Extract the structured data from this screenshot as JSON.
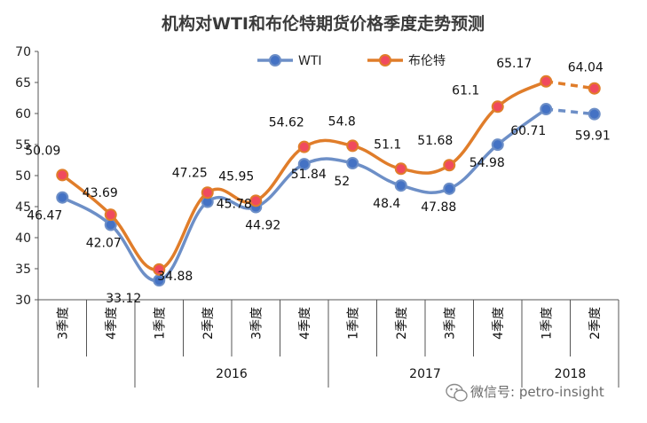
{
  "chart_data": {
    "type": "line",
    "title": "机构对WTI和布伦特期货价格季度走势预测",
    "categories": [
      "3季度",
      "4季度",
      "1季度",
      "2季度",
      "3季度",
      "4季度",
      "1季度",
      "2季度",
      "3季度",
      "4季度",
      "1季度",
      "2季度"
    ],
    "year_groups": [
      {
        "label": "",
        "start": 0,
        "end": 1
      },
      {
        "label": "2016",
        "start": 2,
        "end": 5
      },
      {
        "label": "2017",
        "start": 6,
        "end": 9
      },
      {
        "label": "2018",
        "start": 10,
        "end": 11
      }
    ],
    "ylim": [
      30,
      70
    ],
    "yticks": [
      30,
      35,
      40,
      45,
      50,
      55,
      60,
      65,
      70
    ],
    "series": [
      {
        "name": "WTI",
        "color": "#6d8fc7",
        "marker_color": "#4472c4",
        "values": [
          46.47,
          42.07,
          33.12,
          45.78,
          44.92,
          51.84,
          52,
          48.4,
          47.88,
          54.98,
          60.71,
          59.91
        ],
        "labels": [
          "46.47",
          "42.07",
          "33.12",
          "45.78",
          "44.92",
          "51.84",
          "52",
          "48.4",
          "47.88",
          "54.98",
          "60.71",
          "59.91"
        ],
        "dashed_from_index": 10
      },
      {
        "name": "布伦特",
        "color": "#e07d2a",
        "marker_color": "#f04a5e",
        "values": [
          50.09,
          43.69,
          34.88,
          47.25,
          45.95,
          54.62,
          54.8,
          51.1,
          51.68,
          61.1,
          65.17,
          64.04
        ],
        "labels": [
          "50.09",
          "43.69",
          "34.88",
          "47.25",
          "45.95",
          "54.62",
          "54.8",
          "51.1",
          "51.68",
          "61.1",
          "65.17",
          "64.04"
        ],
        "dashed_from_index": 10
      }
    ],
    "legend_position": "top-center",
    "grid": false
  },
  "watermark": "微信号: petro-insight"
}
